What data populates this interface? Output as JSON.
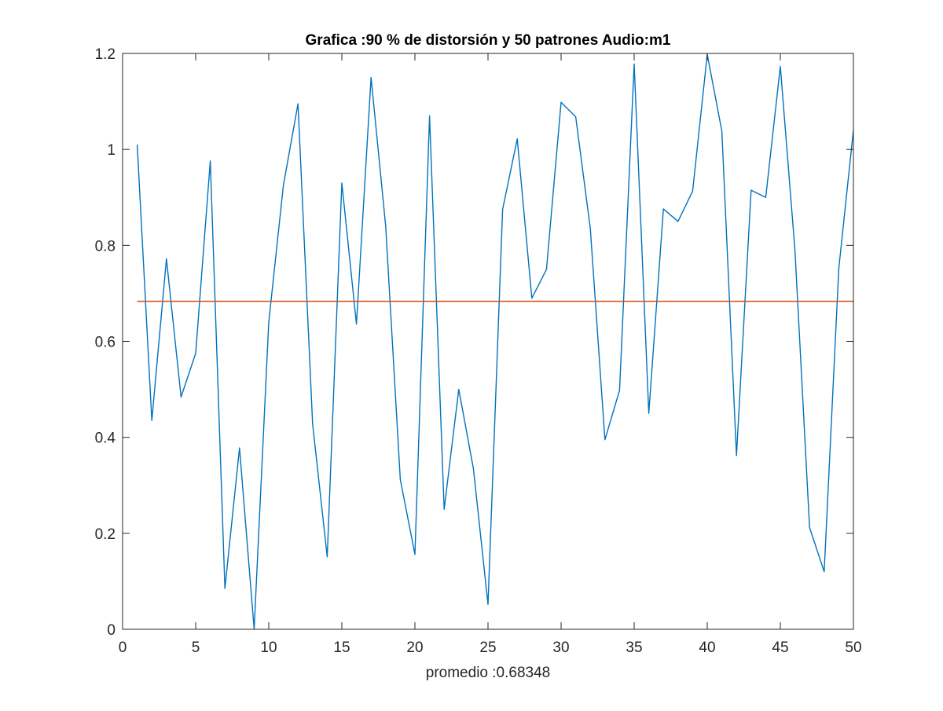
{
  "chart_data": {
    "type": "line",
    "title": "Grafica :90 % de distorsión y 50 patrones Audio:m1",
    "xlabel": "promedio :0.68348",
    "ylabel": "",
    "xlim": [
      0,
      50
    ],
    "ylim": [
      0,
      1.2
    ],
    "xticks": [
      0,
      5,
      10,
      15,
      20,
      25,
      30,
      35,
      40,
      45,
      50
    ],
    "yticks": [
      0,
      0.2,
      0.4,
      0.6,
      0.8,
      1,
      1.2
    ],
    "grid": false,
    "series": [
      {
        "color": "#0072BD",
        "x": [
          1,
          2,
          3,
          4,
          5,
          6,
          7,
          8,
          9,
          10,
          11,
          12,
          13,
          14,
          15,
          16,
          17,
          18,
          19,
          20,
          21,
          22,
          23,
          24,
          25,
          26,
          27,
          28,
          29,
          30,
          31,
          32,
          33,
          34,
          35,
          36,
          37,
          38,
          39,
          40,
          41,
          42,
          43,
          44,
          45,
          46,
          47,
          48,
          49,
          50
        ],
        "values": [
          1.01,
          0.435,
          0.772,
          0.484,
          0.575,
          0.976,
          0.085,
          0.378,
          0.0,
          0.64,
          0.925,
          1.095,
          0.428,
          0.151,
          0.93,
          0.636,
          1.15,
          0.84,
          0.312,
          0.156,
          1.07,
          0.25,
          0.5,
          0.335,
          0.052,
          0.875,
          1.022,
          0.69,
          0.75,
          1.098,
          1.068,
          0.835,
          0.395,
          0.498,
          1.178,
          0.45,
          0.876,
          0.85,
          0.913,
          1.198,
          1.038,
          0.362,
          0.915,
          0.9,
          1.173,
          0.79,
          0.212,
          0.12,
          0.752,
          1.04
        ]
      },
      {
        "color": "#D95319",
        "x": [
          1,
          50
        ],
        "values": [
          0.68348,
          0.68348
        ]
      }
    ]
  }
}
